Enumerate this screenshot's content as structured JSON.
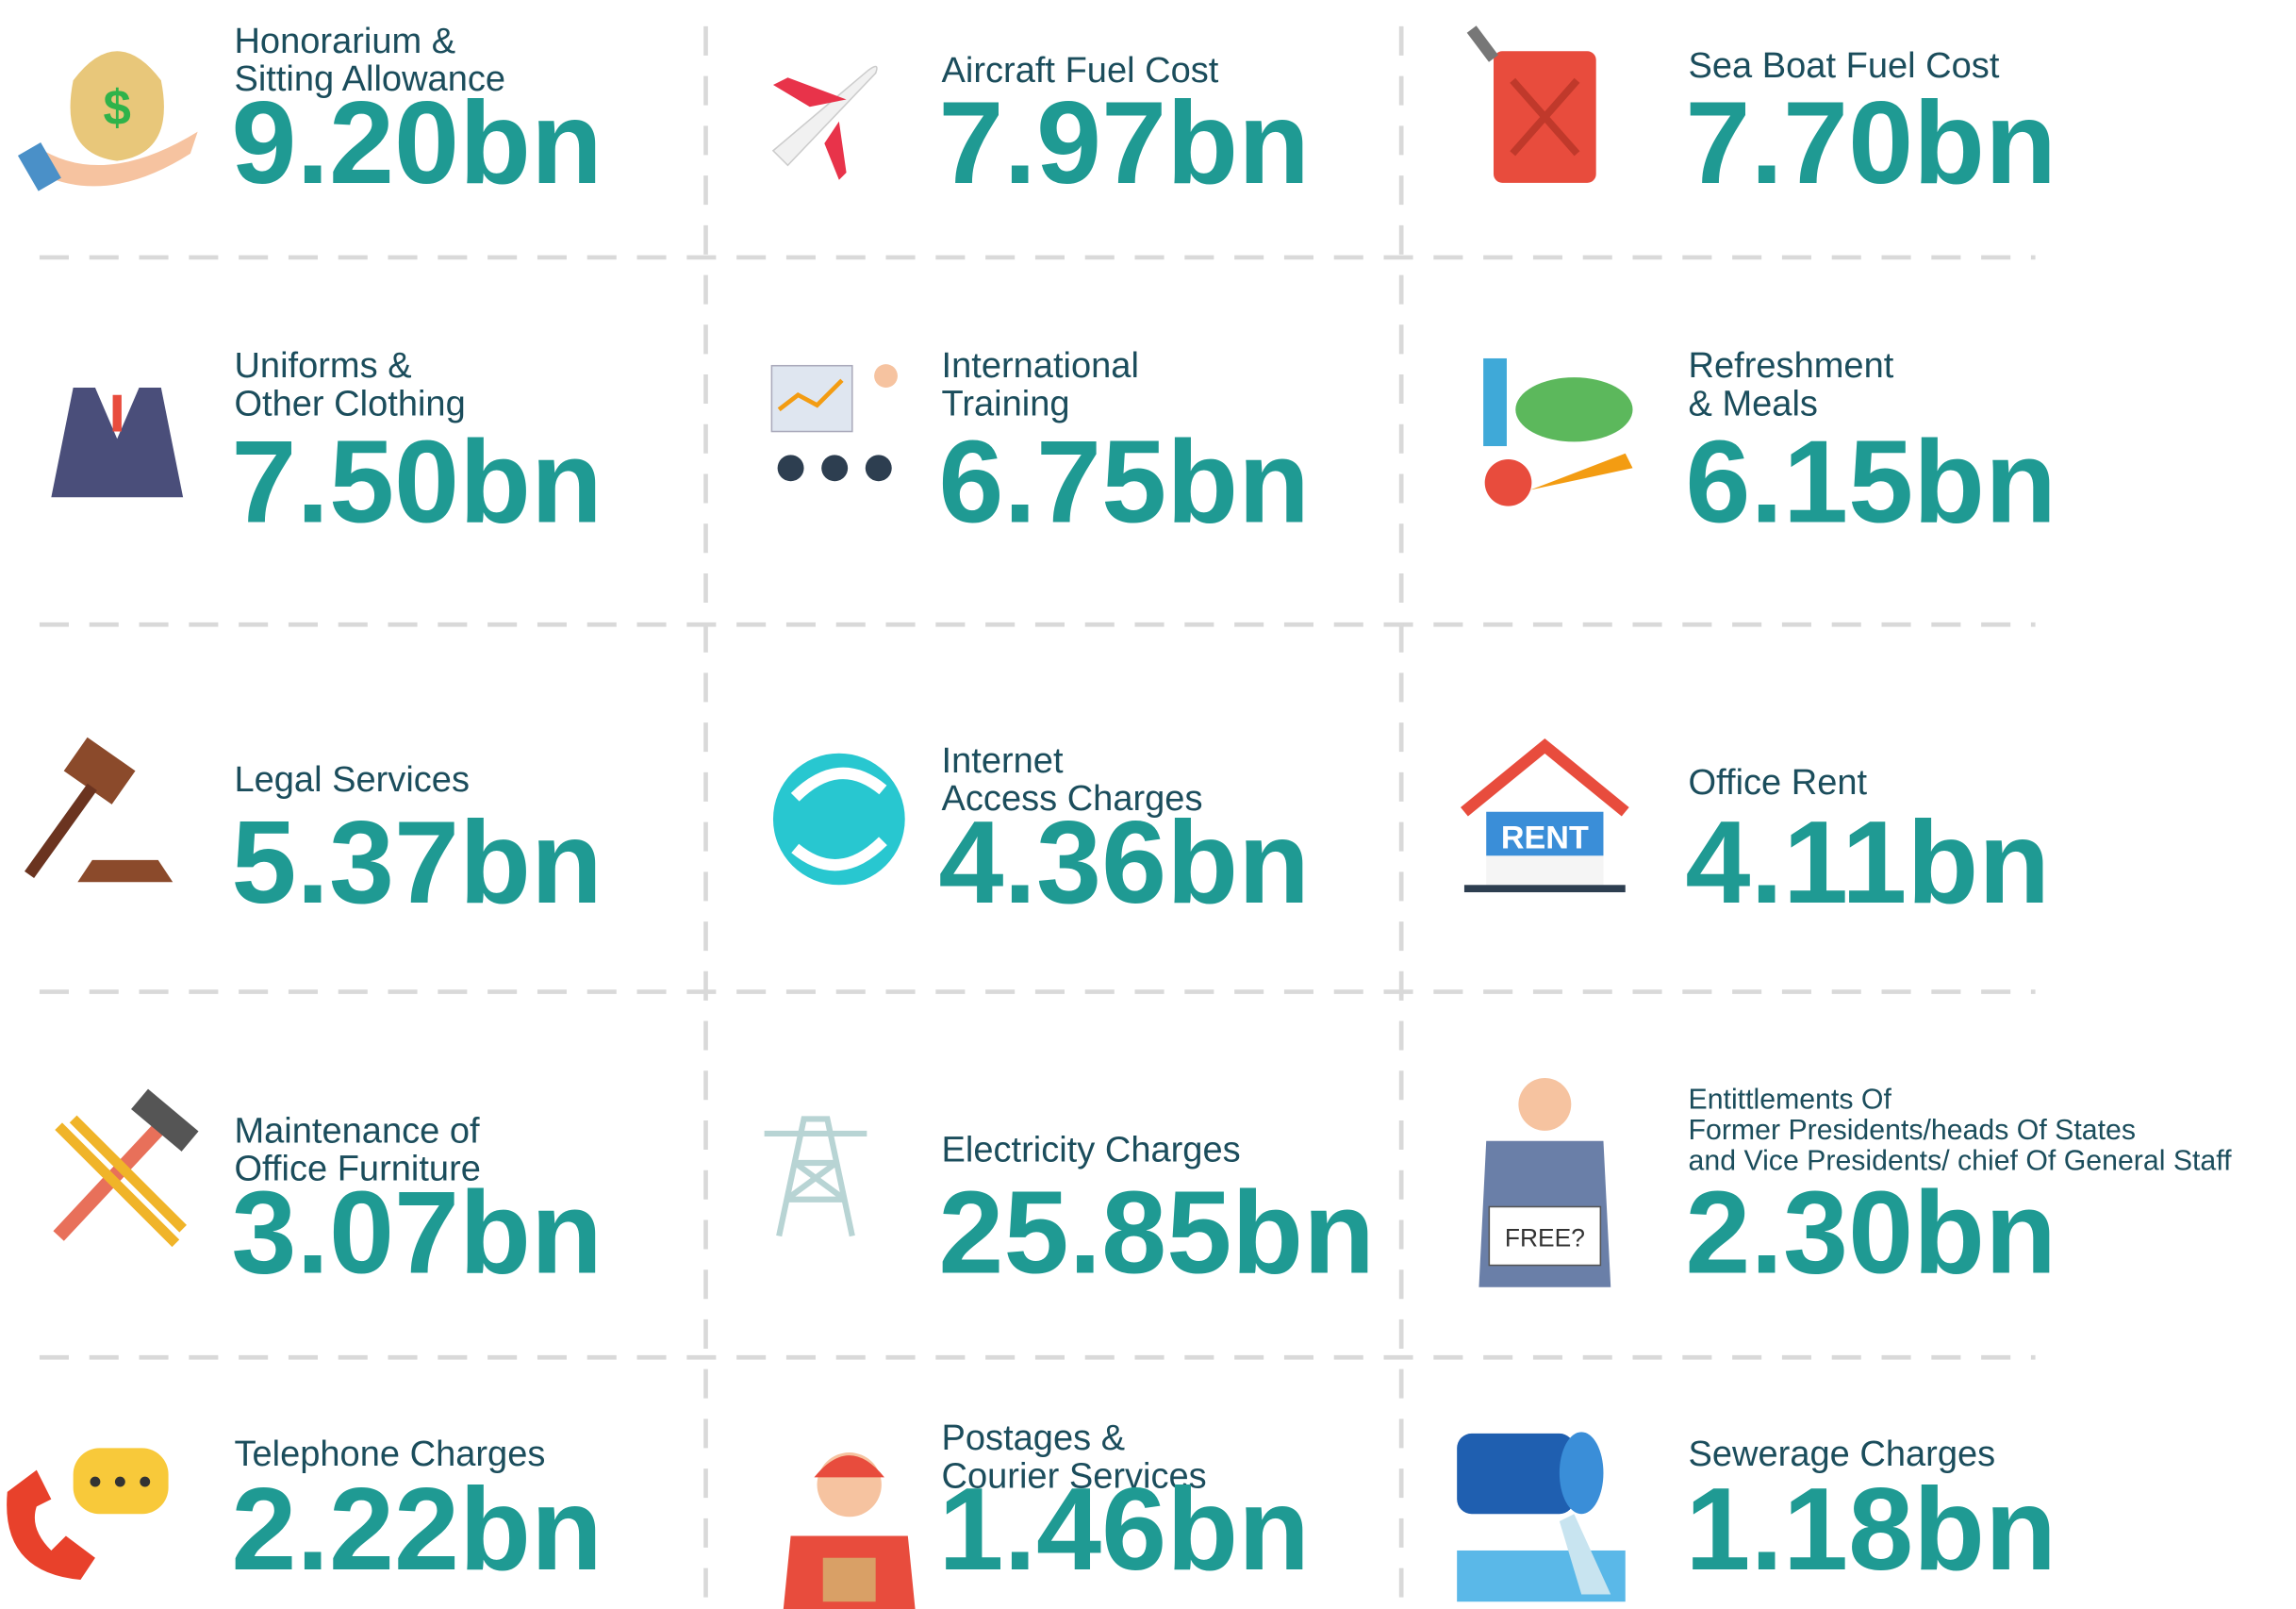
{
  "items": [
    {
      "label": [
        "Honorarium &",
        "Sitting Allowance"
      ],
      "value": "9.20bn",
      "icon_text": "$"
    },
    {
      "label": [
        "Aircraft Fuel Cost"
      ],
      "value": "7.97bn"
    },
    {
      "label": [
        "Sea Boat Fuel Cost"
      ],
      "value": "7.70bn"
    },
    {
      "label": [
        "Uniforms &",
        "Other Clothing"
      ],
      "value": "7.50bn"
    },
    {
      "label": [
        "International",
        "Training"
      ],
      "value": "6.75bn"
    },
    {
      "label": [
        "Refreshment",
        "& Meals"
      ],
      "value": "6.15bn"
    },
    {
      "label": [
        "Legal Services"
      ],
      "value": "5.37bn"
    },
    {
      "label": [
        "Internet",
        "Access Charges"
      ],
      "value": "4.36bn"
    },
    {
      "label": [
        "Office Rent"
      ],
      "value": "4.11bn",
      "icon_text": "RENT"
    },
    {
      "label": [
        "Maintenance of",
        "Office Furniture"
      ],
      "value": "3.07bn"
    },
    {
      "label": [
        "Electricity Charges"
      ],
      "value": "25.85bn"
    },
    {
      "label": [
        "Entittlements Of",
        "Former Presidents/heads Of States",
        "and Vice Presidents/ chief Of General Staff"
      ],
      "value": "2.30bn",
      "icon_text": "FREE?"
    },
    {
      "label": [
        "Telephone Charges"
      ],
      "value": "2.22bn"
    },
    {
      "label": [
        "Postages &",
        "Courier Services"
      ],
      "value": "1.46bn"
    },
    {
      "label": [
        "Sewerage Charges"
      ],
      "value": "1.18bn"
    }
  ]
}
